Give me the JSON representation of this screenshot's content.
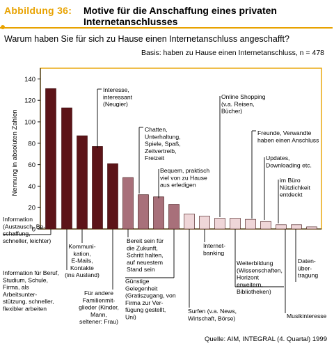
{
  "header": {
    "label": "Abbildung 36:",
    "title": "Motive für die Anschaffung eines privaten Internetanschlusses"
  },
  "question": "Warum haben Sie für sich zu Hause einen Internetanschluss angeschafft?",
  "basis": "Basis: haben zu Hause einen Internetanschluss, n = 478",
  "source": "Quelle: AIM, INTEGRAL (4. Quartal) 1999",
  "colors": {
    "accent": "#e8a200",
    "dark_bar": "#5c1418",
    "mid_bar": "#a8707a",
    "light_bar": "#efd6d8"
  },
  "chart_data": {
    "type": "bar",
    "title": "",
    "xlabel": "",
    "ylabel": "Nennung in absoluten Zahlen",
    "ylim": [
      0,
      150
    ],
    "yticks": [
      0,
      20,
      40,
      60,
      80,
      100,
      120,
      140
    ],
    "grid": false,
    "categories": [
      "Information (Austausch, Beschaffung, schneller, leichter)",
      "Information für Beruf, Studium, Schule, Firma, als Arbeitsunterstützung, schneller, flexibler arbeiten",
      "Kommunikation, E-Mails, Kontakte (ins Ausland)",
      "Interesse, interessant (Neugier)",
      "Für andere Familienmitglieder (Kinder, Mann, seltener: Frau)",
      "Chatten, Unterhaltung, Spiele, Spaß, Zeitvertreib, Freizeit",
      "Bereit sein für die Zukunft, Schritt halten, auf neuestem Stand sein",
      "Bequem, praktisch viel von zu Hause aus erledigen",
      "Günstige Gelegenheit (Gratiszugang, von Firma zur Verfügung gestellt, Uni)",
      "Surfen (v.a. News, Wirtschaft, Börse)",
      "Internet-banking",
      "Online Shopping (v.a. Reisen, Bücher)",
      "Freunde, Verwandte haben einen Anschluss",
      "Weiterbildung (Wissenschaften, Horizont erweitern, Bibliotheken)",
      "Updates, Downloading etc.",
      "im Büro Nützlichkeit entdeckt",
      "Musikinteresse",
      "Datenübertragung"
    ],
    "values": [
      131,
      113,
      87,
      77,
      61,
      48,
      32,
      30,
      23,
      14,
      12,
      10,
      10,
      9,
      7,
      4,
      4,
      2
    ],
    "labels": [
      {
        "lines": [
          "Information",
          "(Austausch, Be-",
          "schaffung,",
          "schneller, leichter)"
        ]
      },
      {
        "lines": [
          "Information für Beruf,",
          "Studium, Schule,",
          "Firma, als",
          "Arbeitsunter-",
          "stützung, schneller,",
          "flexibler arbeiten"
        ]
      },
      {
        "lines": [
          "Kommuni-",
          "kation,",
          "E-Mails,",
          "Kontakte",
          "(ins Ausland)"
        ]
      },
      {
        "lines": [
          "Interesse,",
          "interessant",
          "(Neugier)"
        ]
      },
      {
        "lines": [
          "Für andere",
          "Familienmit-",
          "glieder (Kinder,",
          "Mann,",
          "seltener: Frau)"
        ]
      },
      {
        "lines": [
          "Chatten,",
          "Unterhaltung,",
          "Spiele, Spaß,",
          "Zeitvertreib,",
          "Freizeit"
        ]
      },
      {
        "lines": [
          "Bereit sein für",
          "die Zukunft,",
          "Schritt halten,",
          "auf neuestem",
          "Stand sein"
        ]
      },
      {
        "lines": [
          "Bequem, praktisch",
          "viel von zu Hause",
          "aus erledigen"
        ]
      },
      {
        "lines": [
          "Günstige",
          "Gelegenheit",
          "(Gratiszugang, von",
          "Firma zur Ver-",
          "fügung gestellt,",
          "Uni)"
        ]
      },
      {
        "lines": [
          "Surfen (v.a. News,",
          "Wirtschaft, Börse)"
        ]
      },
      {
        "lines": [
          "Internet-",
          "banking"
        ]
      },
      {
        "lines": [
          "Online Shopping",
          "(v.a. Reisen,",
          "Bücher)"
        ]
      },
      {
        "lines": [
          "Freunde, Verwandte",
          "haben einen Anschluss"
        ]
      },
      {
        "lines": [
          "Weiterbildung",
          "(Wissenschaften,",
          "Horizont",
          "erweitern,",
          "Bibliotheken)"
        ]
      },
      {
        "lines": [
          "Updates,",
          "Downloading etc."
        ]
      },
      {
        "lines": [
          "im Büro",
          "Nützlichkeit",
          "entdeckt"
        ]
      },
      {
        "lines": [
          "Musikinteresse"
        ]
      },
      {
        "lines": [
          "Daten-",
          "über-",
          "tragung"
        ]
      }
    ]
  }
}
